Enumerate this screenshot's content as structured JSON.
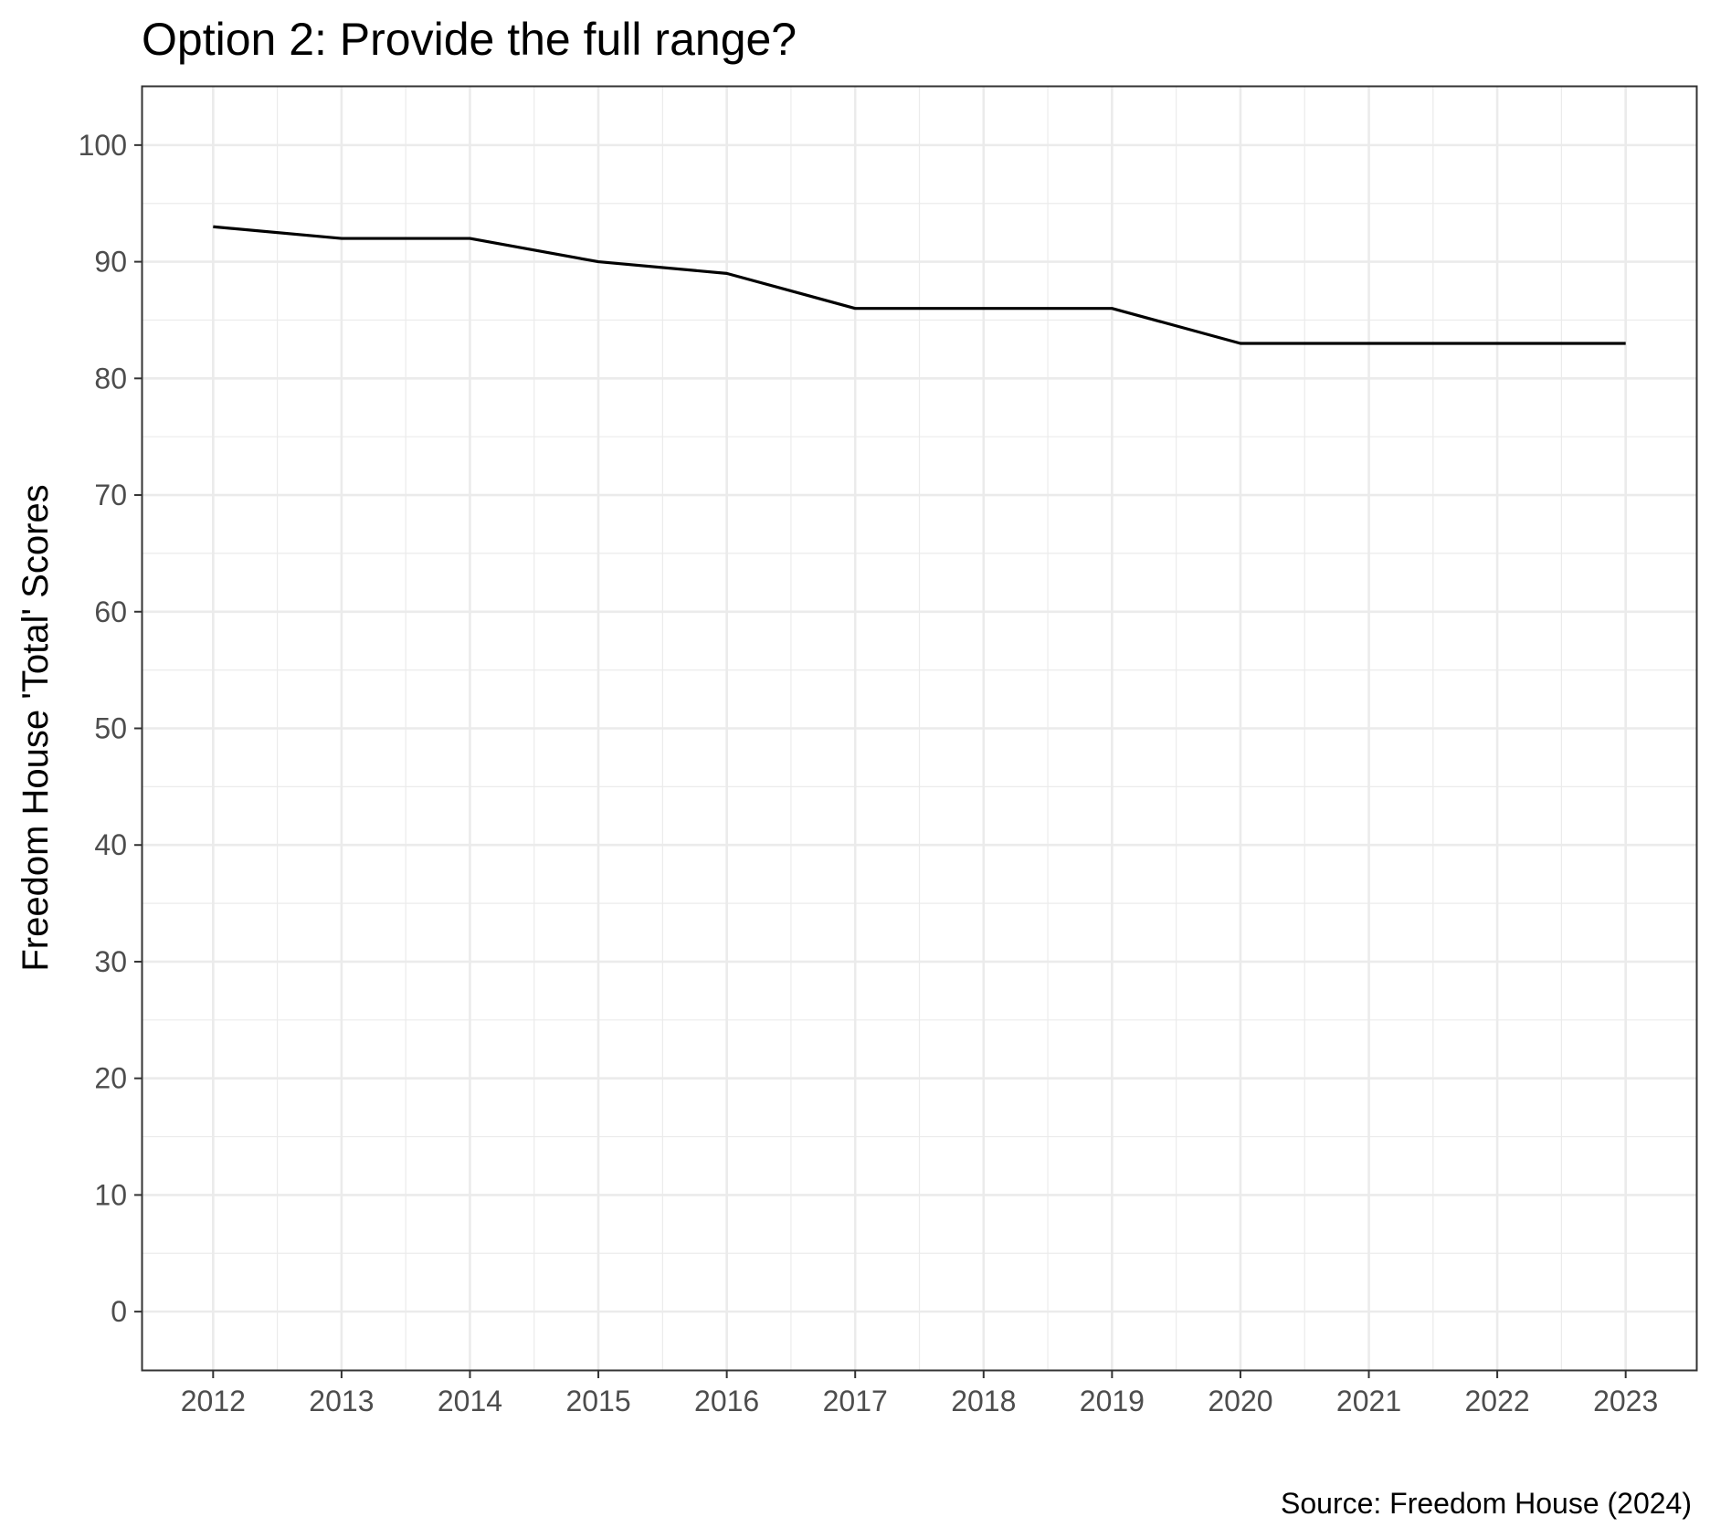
{
  "chart_data": {
    "type": "line",
    "title": "Option 2: Provide the full range?",
    "xlabel": "",
    "ylabel": "Freedom House 'Total' Scores",
    "caption": "Source: Freedom House (2024)",
    "x": [
      2012,
      2013,
      2014,
      2015,
      2016,
      2017,
      2018,
      2019,
      2020,
      2021,
      2022,
      2023
    ],
    "series": [
      {
        "values": [
          93,
          92,
          92,
          90,
          89,
          86,
          86,
          86,
          83,
          83,
          83,
          83
        ]
      }
    ],
    "xlim": [
      2011.45,
      2023.55
    ],
    "ylim": [
      -5,
      105
    ],
    "x_ticks": [
      "2012",
      "2013",
      "2014",
      "2015",
      "2016",
      "2017",
      "2018",
      "2019",
      "2020",
      "2021",
      "2022",
      "2023"
    ],
    "y_ticks": [
      "0",
      "10",
      "20",
      "30",
      "40",
      "50",
      "60",
      "70",
      "80",
      "90",
      "100"
    ],
    "grid": true,
    "legend": "none",
    "colors": {
      "line": "#000000",
      "grid": "#ebebeb",
      "panel_border": "#333333",
      "tick_text": "#4d4d4d"
    }
  }
}
